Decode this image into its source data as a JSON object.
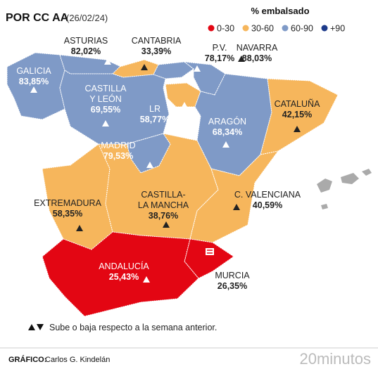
{
  "header": {
    "title": "POR CC AA",
    "date": "(26/02/24)"
  },
  "legend": {
    "title": "% embalsado",
    "items": [
      {
        "label": "0-30",
        "color": "#e30613"
      },
      {
        "label": "30-60",
        "color": "#f6b65c"
      },
      {
        "label": "60-90",
        "color": "#7f9ac7"
      },
      {
        "label": "+90",
        "color": "#1d3a8a"
      }
    ]
  },
  "regions": [
    {
      "name": "GALICIA",
      "value": "83,85%",
      "trend": "up",
      "color": "#7f9ac7"
    },
    {
      "name": "ASTURIAS",
      "value": "82,02%",
      "trend": "up",
      "color": "#7f9ac7"
    },
    {
      "name": "CANTABRIA",
      "value": "33,39%",
      "trend": "up",
      "color": "#f6b65c"
    },
    {
      "name": "P.V.",
      "value": "78,17%",
      "trend": "up",
      "color": "#7f9ac7"
    },
    {
      "name": "NAVARRA",
      "value": "88,03%",
      "trend": "up",
      "color": "#7f9ac7"
    },
    {
      "name": "CASTILLA Y LEÓN",
      "value": "69,55%",
      "trend": "up",
      "color": "#7f9ac7"
    },
    {
      "name": "LR",
      "value": "58,77%",
      "trend": "up",
      "color": "#f6b65c"
    },
    {
      "name": "ARAGÓN",
      "value": "68,34%",
      "trend": "up",
      "color": "#7f9ac7"
    },
    {
      "name": "CATALUÑA",
      "value": "42,15%",
      "trend": "up",
      "color": "#f6b65c"
    },
    {
      "name": "MADRID",
      "value": "79,53%",
      "trend": "up",
      "color": "#7f9ac7"
    },
    {
      "name": "EXTREMADURA",
      "value": "58,35%",
      "trend": "up",
      "color": "#f6b65c"
    },
    {
      "name": "CASTILLA-LA MANCHA",
      "value": "38,76%",
      "trend": "up",
      "color": "#f6b65c"
    },
    {
      "name": "C. VALENCIANA",
      "value": "40,59%",
      "trend": "up",
      "color": "#f6b65c"
    },
    {
      "name": "ANDALUCÍA",
      "value": "25,43%",
      "trend": "up",
      "color": "#e30613"
    },
    {
      "name": "MURCIA",
      "value": "26,35%",
      "trend": "equal",
      "color": "#e30613"
    }
  ],
  "footnote": "Sube o baja respecto a la semana anterior.",
  "credit": {
    "label": "GRÁFICO:",
    "author": "Carlos G. Kindelán",
    "logo": "20minutos"
  }
}
